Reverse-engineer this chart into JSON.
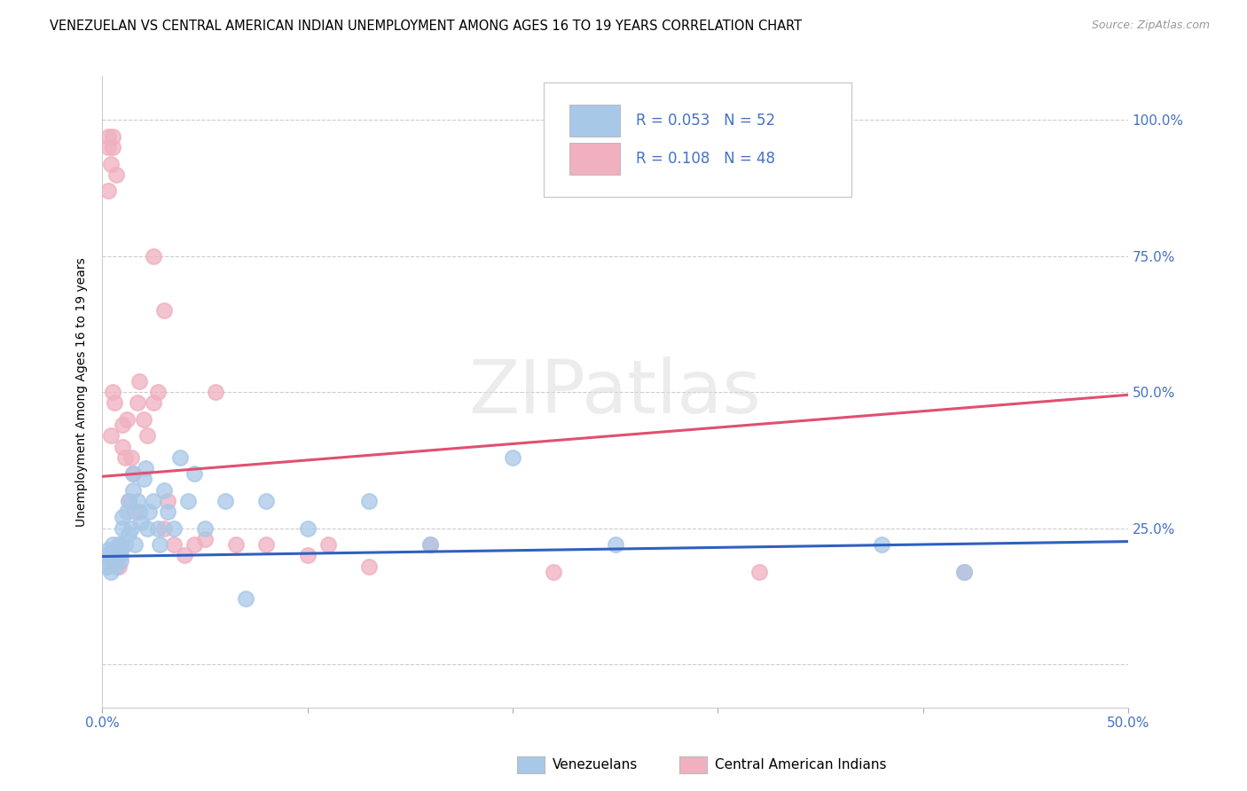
{
  "title": "VENEZUELAN VS CENTRAL AMERICAN INDIAN UNEMPLOYMENT AMONG AGES 16 TO 19 YEARS CORRELATION CHART",
  "source": "Source: ZipAtlas.com",
  "ylabel": "Unemployment Among Ages 16 to 19 years",
  "ytick_values": [
    0.0,
    0.25,
    0.5,
    0.75,
    1.0
  ],
  "ytick_labels_right": [
    "",
    "25.0%",
    "50.0%",
    "75.0%",
    "100.0%"
  ],
  "xmin": 0.0,
  "xmax": 0.5,
  "ymin": -0.08,
  "ymax": 1.08,
  "blue_color": "#a8c8e8",
  "pink_color": "#f0b0c0",
  "blue_line_color": "#3060c0",
  "pink_line_color": "#e05070",
  "legend_label_blue": "Venezuelans",
  "legend_label_pink": "Central American Indians",
  "watermark_text": "ZIPatlas",
  "background_color": "#ffffff",
  "title_fontsize": 10.5,
  "source_fontsize": 9,
  "blue_intercept": 0.198,
  "blue_slope": 0.055,
  "pink_intercept": 0.345,
  "pink_slope": 0.3,
  "venezuelan_x": [
    0.001,
    0.002,
    0.003,
    0.004,
    0.004,
    0.005,
    0.005,
    0.006,
    0.006,
    0.007,
    0.007,
    0.008,
    0.008,
    0.009,
    0.009,
    0.01,
    0.01,
    0.011,
    0.012,
    0.013,
    0.013,
    0.014,
    0.015,
    0.015,
    0.016,
    0.017,
    0.018,
    0.019,
    0.02,
    0.021,
    0.022,
    0.023,
    0.025,
    0.027,
    0.028,
    0.03,
    0.032,
    0.035,
    0.038,
    0.042,
    0.045,
    0.05,
    0.06,
    0.07,
    0.08,
    0.1,
    0.13,
    0.16,
    0.2,
    0.25,
    0.38,
    0.42
  ],
  "venezuelan_y": [
    0.2,
    0.18,
    0.21,
    0.19,
    0.17,
    0.2,
    0.22,
    0.19,
    0.21,
    0.2,
    0.18,
    0.22,
    0.2,
    0.19,
    0.21,
    0.25,
    0.27,
    0.22,
    0.28,
    0.3,
    0.24,
    0.25,
    0.32,
    0.35,
    0.22,
    0.3,
    0.28,
    0.26,
    0.34,
    0.36,
    0.25,
    0.28,
    0.3,
    0.25,
    0.22,
    0.32,
    0.28,
    0.25,
    0.38,
    0.3,
    0.35,
    0.25,
    0.3,
    0.12,
    0.3,
    0.25,
    0.3,
    0.22,
    0.38,
    0.22,
    0.22,
    0.17
  ],
  "central_american_x": [
    0.001,
    0.002,
    0.003,
    0.003,
    0.004,
    0.005,
    0.005,
    0.006,
    0.007,
    0.008,
    0.008,
    0.009,
    0.01,
    0.01,
    0.011,
    0.012,
    0.013,
    0.014,
    0.015,
    0.016,
    0.017,
    0.018,
    0.02,
    0.022,
    0.025,
    0.027,
    0.03,
    0.032,
    0.035,
    0.04,
    0.045,
    0.05,
    0.055,
    0.065,
    0.08,
    0.1,
    0.11,
    0.13,
    0.16,
    0.22,
    0.003,
    0.004,
    0.005,
    0.006,
    0.025,
    0.03,
    0.32,
    0.42
  ],
  "central_american_y": [
    0.2,
    0.18,
    0.97,
    0.95,
    0.92,
    0.97,
    0.95,
    0.2,
    0.9,
    0.22,
    0.18,
    0.2,
    0.4,
    0.44,
    0.38,
    0.45,
    0.3,
    0.38,
    0.35,
    0.28,
    0.48,
    0.52,
    0.45,
    0.42,
    0.48,
    0.5,
    0.65,
    0.3,
    0.22,
    0.2,
    0.22,
    0.23,
    0.5,
    0.22,
    0.22,
    0.2,
    0.22,
    0.18,
    0.22,
    0.17,
    0.87,
    0.42,
    0.5,
    0.48,
    0.75,
    0.25,
    0.17,
    0.17
  ]
}
